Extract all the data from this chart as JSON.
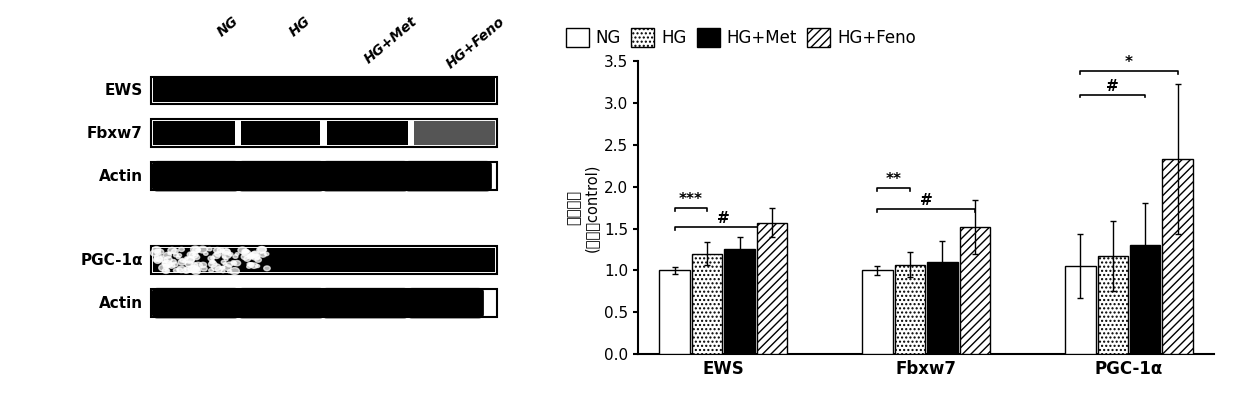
{
  "bar_groups": [
    "EWS",
    "Fbxw7",
    "PGC-1α"
  ],
  "conditions": [
    "NG",
    "HG",
    "HG+Met",
    "HG+Feno"
  ],
  "bar_values": {
    "EWS": [
      1.0,
      1.2,
      1.25,
      1.57
    ],
    "Fbxw7": [
      1.0,
      1.07,
      1.1,
      1.52
    ],
    "PGC-1α": [
      1.05,
      1.17,
      1.3,
      2.33
    ]
  },
  "bar_errors": {
    "EWS": [
      0.04,
      0.14,
      0.15,
      0.17
    ],
    "Fbxw7": [
      0.05,
      0.15,
      0.25,
      0.32
    ],
    "PGC-1α": [
      0.38,
      0.42,
      0.5,
      0.9
    ]
  },
  "bar_hatches": [
    null,
    "....",
    null,
    "////"
  ],
  "legend_labels": [
    "NG",
    "HG",
    "HG+Met",
    "HG+Feno"
  ],
  "ylabel_top": "蛋白表达",
  "ylabel_bottom": "(相比于control)",
  "ylim": [
    0.0,
    3.5
  ],
  "yticks": [
    0.0,
    0.5,
    1.0,
    1.5,
    2.0,
    2.5,
    3.0,
    3.5
  ],
  "col_labels": [
    "NG",
    "HG",
    "HG+Met",
    "HG+Feno"
  ],
  "background_color": "#ffffff",
  "fontsize_axis": 12,
  "fontsize_tick": 11,
  "fontsize_legend": 12,
  "bar_width": 0.15,
  "group_centers": [
    0.0,
    1.0,
    2.0
  ]
}
